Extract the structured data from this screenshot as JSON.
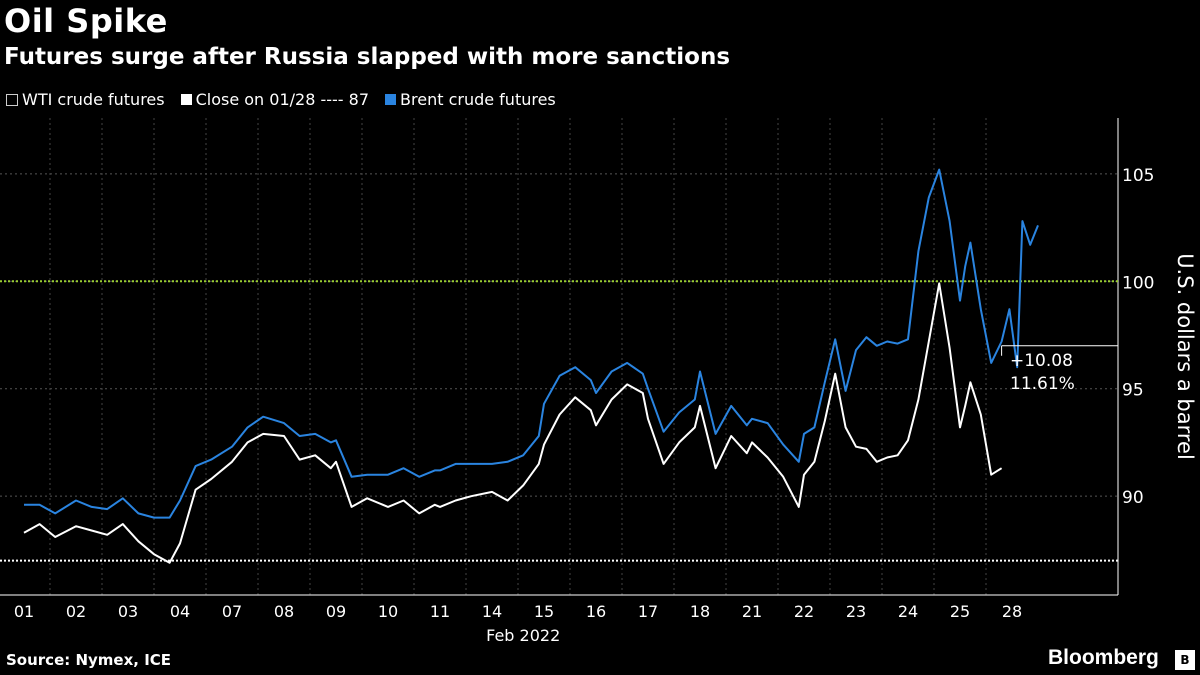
{
  "header": {
    "title": "Oil Spike",
    "subtitle": "Futures surge after Russia slapped with more sanctions"
  },
  "legend": {
    "items": [
      {
        "label": "WTI crude futures",
        "color": "#ffffff",
        "style": "hilo"
      },
      {
        "label": "Close on 01/28 ---- 87",
        "color": "#ffffff",
        "style": "square"
      },
      {
        "label": "Brent crude futures",
        "color": "#2a84e0",
        "style": "square"
      }
    ]
  },
  "footer": {
    "source": "Source: Nymex, ICE",
    "brand": "Bloomberg"
  },
  "colors": {
    "background": "#000000",
    "wti": "#ffffff",
    "brent": "#2a84e0",
    "reference_100": "#9acd32",
    "grid": "#555555"
  },
  "chart_data": {
    "type": "line",
    "title": "Oil Spike",
    "subtitle": "Futures surge after Russia slapped with more sanctions",
    "xlabel": "Feb 2022",
    "ylabel": "U.S. dollars a barrel",
    "ylim": [
      85.4,
      107.6
    ],
    "yticks": [
      90,
      95,
      100,
      105
    ],
    "grid": true,
    "legend_position": "top-left",
    "axis_side": "right",
    "categories": [
      "01",
      "02",
      "03",
      "04",
      "07",
      "08",
      "09",
      "10",
      "11",
      "14",
      "15",
      "16",
      "17",
      "18",
      "21",
      "22",
      "23",
      "24",
      "25",
      "28"
    ],
    "reference_lines": [
      {
        "label": "Close on 01/28",
        "value": 87,
        "style": "dotted",
        "color": "#ffffff"
      },
      {
        "value": 100,
        "style": "dotted",
        "color": "#9acd32"
      }
    ],
    "annotation": {
      "lines": [
        "+10.08",
        "11.61%"
      ],
      "at_value": 97
    },
    "series": [
      {
        "name": "WTI crude futures",
        "color": "#ffffff",
        "x": [
          0,
          0.3,
          0.6,
          1,
          1.3,
          1.6,
          1.9,
          2.2,
          2.5,
          2.8,
          3,
          3.3,
          3.6,
          4,
          4.3,
          4.6,
          5,
          5.3,
          5.6,
          5.9,
          6,
          6.3,
          6.6,
          7,
          7.3,
          7.6,
          7.9,
          8,
          8.3,
          8.6,
          9,
          9.3,
          9.6,
          9.9,
          10,
          10.3,
          10.6,
          10.9,
          11,
          11.3,
          11.6,
          11.9,
          12,
          12.3,
          12.6,
          12.9,
          13,
          13.3,
          13.6,
          13.9,
          14,
          14.3,
          14.6,
          14.9,
          15,
          15.2,
          15.4,
          15.6,
          15.8,
          16,
          16.2,
          16.4,
          16.6,
          16.8,
          17,
          17.2,
          17.4,
          17.6,
          17.8,
          18,
          18.1,
          18.2,
          18.4,
          18.6,
          18.8
        ],
        "values": [
          88.3,
          88.7,
          88.1,
          88.6,
          88.4,
          88.2,
          88.7,
          87.9,
          87.3,
          86.9,
          87.8,
          90.3,
          90.8,
          91.6,
          92.5,
          92.9,
          92.8,
          91.7,
          91.9,
          91.3,
          91.6,
          89.5,
          89.9,
          89.5,
          89.8,
          89.2,
          89.6,
          89.5,
          89.8,
          90.0,
          90.2,
          89.8,
          90.5,
          91.5,
          92.4,
          93.8,
          94.6,
          94.0,
          93.3,
          94.5,
          95.2,
          94.8,
          93.6,
          91.5,
          92.5,
          93.2,
          94.2,
          91.3,
          92.8,
          92.0,
          92.5,
          91.8,
          90.9,
          89.5,
          91.0,
          91.6,
          93.5,
          95.7,
          93.2,
          92.3,
          92.2,
          91.6,
          91.8,
          91.9,
          92.6,
          94.5,
          97.2,
          99.9,
          96.9,
          93.2,
          94.2,
          95.3,
          93.8,
          91.0,
          91.3
        ]
      },
      {
        "name": "Brent crude futures",
        "color": "#2a84e0",
        "x": [
          0,
          0.3,
          0.6,
          1,
          1.3,
          1.6,
          1.9,
          2.2,
          2.5,
          2.8,
          3,
          3.3,
          3.6,
          4,
          4.3,
          4.6,
          5,
          5.3,
          5.6,
          5.9,
          6,
          6.3,
          6.6,
          7,
          7.3,
          7.6,
          7.9,
          8,
          8.3,
          8.6,
          9,
          9.3,
          9.6,
          9.9,
          10,
          10.3,
          10.6,
          10.9,
          11,
          11.3,
          11.6,
          11.9,
          12,
          12.3,
          12.6,
          12.9,
          13,
          13.3,
          13.6,
          13.9,
          14,
          14.3,
          14.6,
          14.9,
          15,
          15.2,
          15.4,
          15.6,
          15.8,
          16,
          16.2,
          16.4,
          16.6,
          16.8,
          17,
          17.2,
          17.4,
          17.6,
          17.8,
          18,
          18.1,
          18.2,
          18.4,
          18.6,
          18.8,
          18.95,
          19.1,
          19.2,
          19.35,
          19.5
        ],
        "values": [
          89.6,
          89.6,
          89.2,
          89.8,
          89.5,
          89.4,
          89.9,
          89.2,
          89.0,
          89.0,
          89.8,
          91.4,
          91.7,
          92.3,
          93.2,
          93.7,
          93.4,
          92.8,
          92.9,
          92.5,
          92.6,
          90.9,
          91.0,
          91.0,
          91.3,
          90.9,
          91.2,
          91.2,
          91.5,
          91.5,
          91.5,
          91.6,
          91.9,
          92.8,
          94.3,
          95.6,
          96.0,
          95.4,
          94.8,
          95.8,
          96.2,
          95.7,
          95.0,
          93.0,
          93.9,
          94.5,
          95.8,
          92.9,
          94.2,
          93.3,
          93.6,
          93.4,
          92.4,
          91.6,
          92.9,
          93.2,
          95.3,
          97.3,
          94.9,
          96.8,
          97.4,
          97.0,
          97.2,
          97.1,
          97.3,
          101.4,
          103.9,
          105.2,
          102.8,
          99.1,
          100.7,
          101.8,
          98.7,
          96.2,
          97.2,
          98.7,
          96.0,
          102.8,
          101.7,
          102.6
        ]
      }
    ]
  }
}
